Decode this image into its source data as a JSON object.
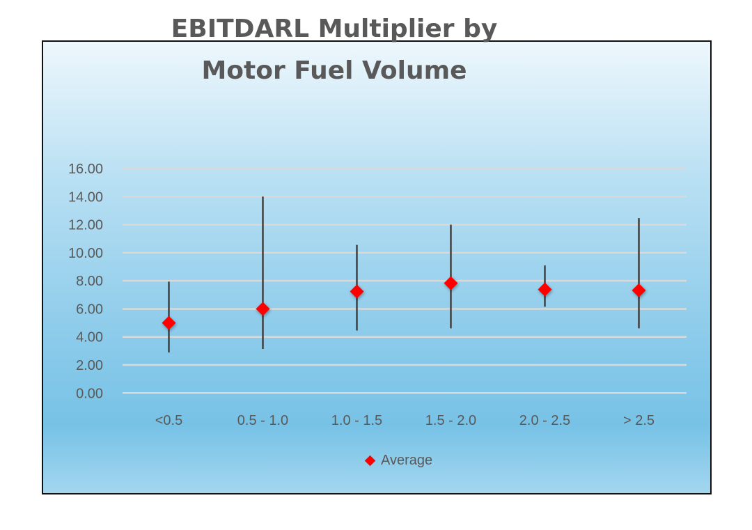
{
  "chart_data": {
    "type": "scatter",
    "title_lines": [
      "EBITDARL Multiplier by",
      "Motor Fuel Volume"
    ],
    "categories": [
      "<0.5",
      "0.5 - 1.0",
      "1.0 - 1.5",
      "1.5 - 2.0",
      "2.0 - 2.5",
      "> 2.5"
    ],
    "series": [
      {
        "name": "Average",
        "marker": "diamond",
        "color": "#ff0000",
        "values": [
          5.0,
          6.0,
          7.24,
          7.83,
          7.38,
          7.32
        ]
      }
    ],
    "ranges": {
      "high": [
        7.94,
        14.0,
        10.56,
        12.0,
        9.09,
        12.47
      ],
      "low": [
        2.89,
        3.14,
        4.46,
        4.61,
        6.15,
        4.61
      ],
      "color": "#404040"
    },
    "ylim": [
      0,
      16
    ],
    "yticks": [
      "0.00",
      "2.00",
      "4.00",
      "6.00",
      "8.00",
      "10.00",
      "12.00",
      "14.00",
      "16.00"
    ],
    "grid": true,
    "legend_position": "bottom",
    "xlabel": "",
    "ylabel": ""
  }
}
